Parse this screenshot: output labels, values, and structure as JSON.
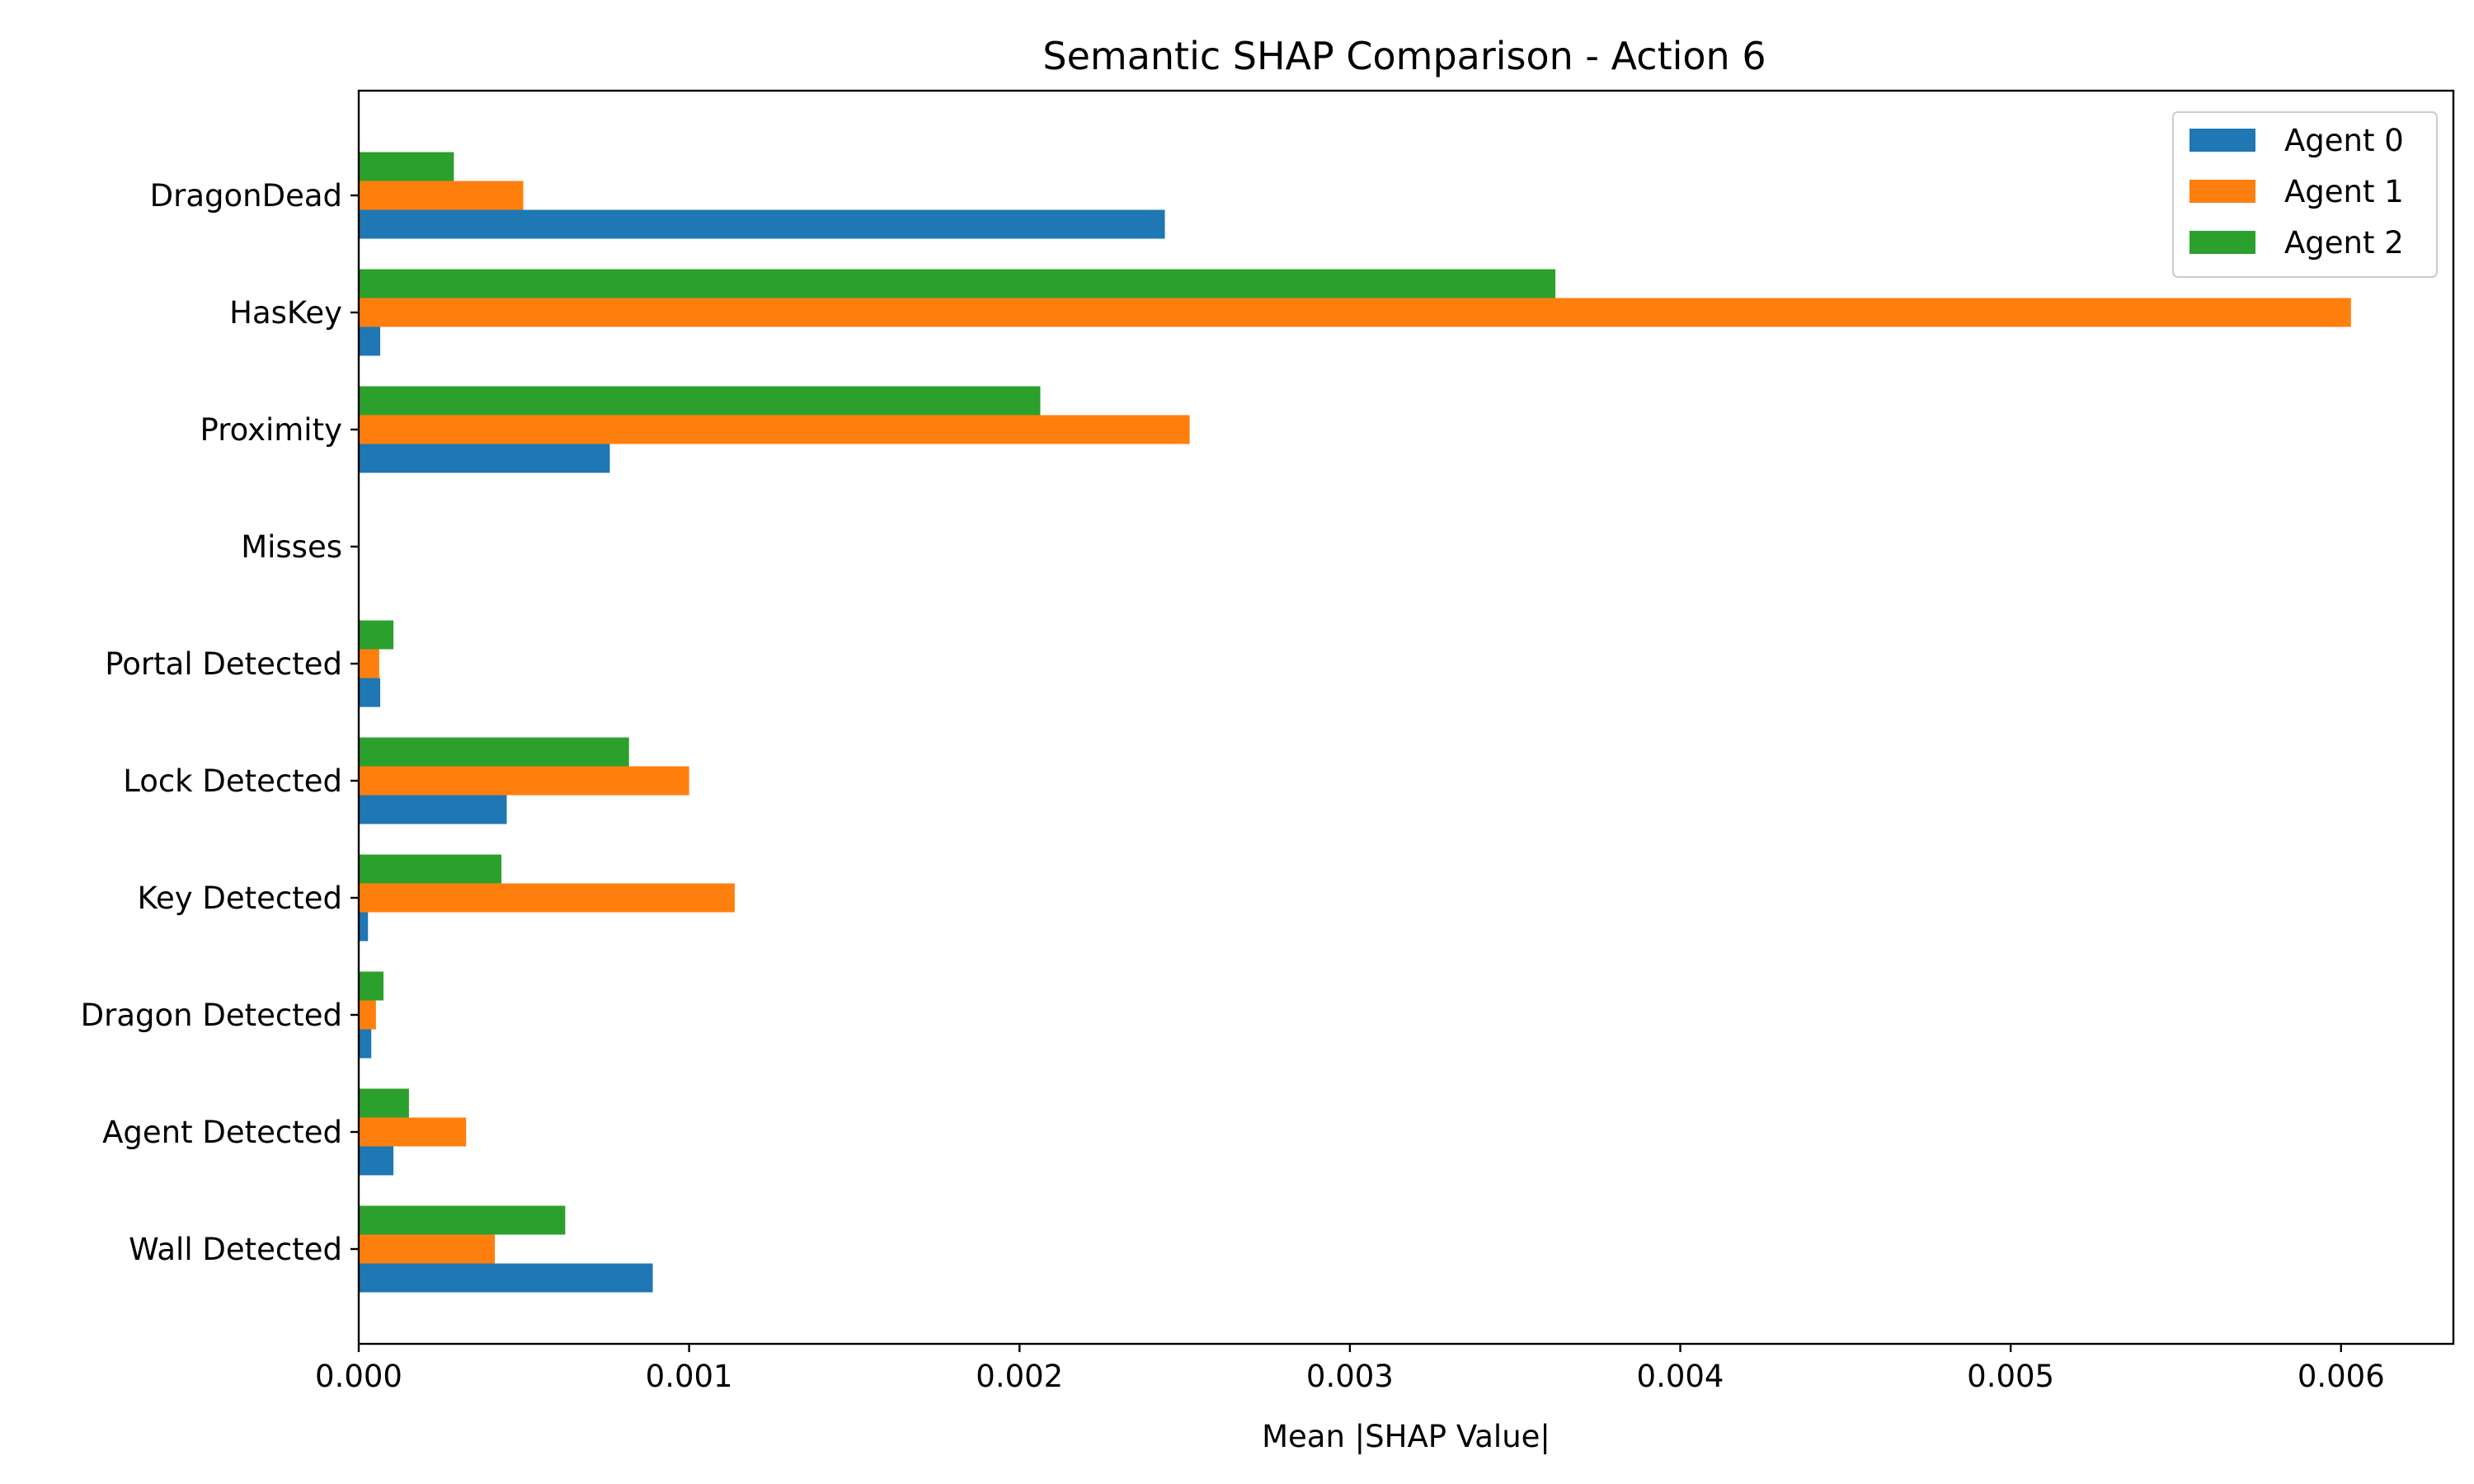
{
  "chart_data": {
    "type": "bar",
    "orientation": "horizontal",
    "title": "Semantic SHAP Comparison - Action 6",
    "xlabel": "Mean |SHAP Value|",
    "ylabel": "",
    "xlim": [
      0,
      0.00634
    ],
    "xticks": [
      0.0,
      0.001,
      0.002,
      0.003,
      0.004,
      0.005,
      0.006
    ],
    "xtick_labels": [
      "0.000",
      "0.001",
      "0.002",
      "0.003",
      "0.004",
      "0.005",
      "0.006"
    ],
    "categories": [
      "DragonDead",
      "HasKey",
      "Proximity",
      "Misses",
      "Portal Detected",
      "Lock Detected",
      "Key Detected",
      "Dragon Detected",
      "Agent Detected",
      "Wall Detected"
    ],
    "series": [
      {
        "name": "Agent 0",
        "color": "#1f77b4",
        "values": [
          0.00244,
          6.5e-05,
          0.00076,
          0.0,
          6.5e-05,
          0.000448,
          2.8e-05,
          3.8e-05,
          0.000105,
          0.00089
        ]
      },
      {
        "name": "Agent 1",
        "color": "#ff7f0e",
        "values": [
          0.000498,
          0.00603,
          0.002515,
          0.0,
          6.2e-05,
          0.001,
          0.001138,
          5.2e-05,
          0.000325,
          0.000412
        ]
      },
      {
        "name": "Agent 2",
        "color": "#2ca02c",
        "values": [
          0.000288,
          0.003622,
          0.002063,
          0.0,
          0.000105,
          0.000818,
          0.000432,
          7.5e-05,
          0.000152,
          0.000625
        ]
      }
    ],
    "legend_position": "top-right",
    "grid": false
  }
}
